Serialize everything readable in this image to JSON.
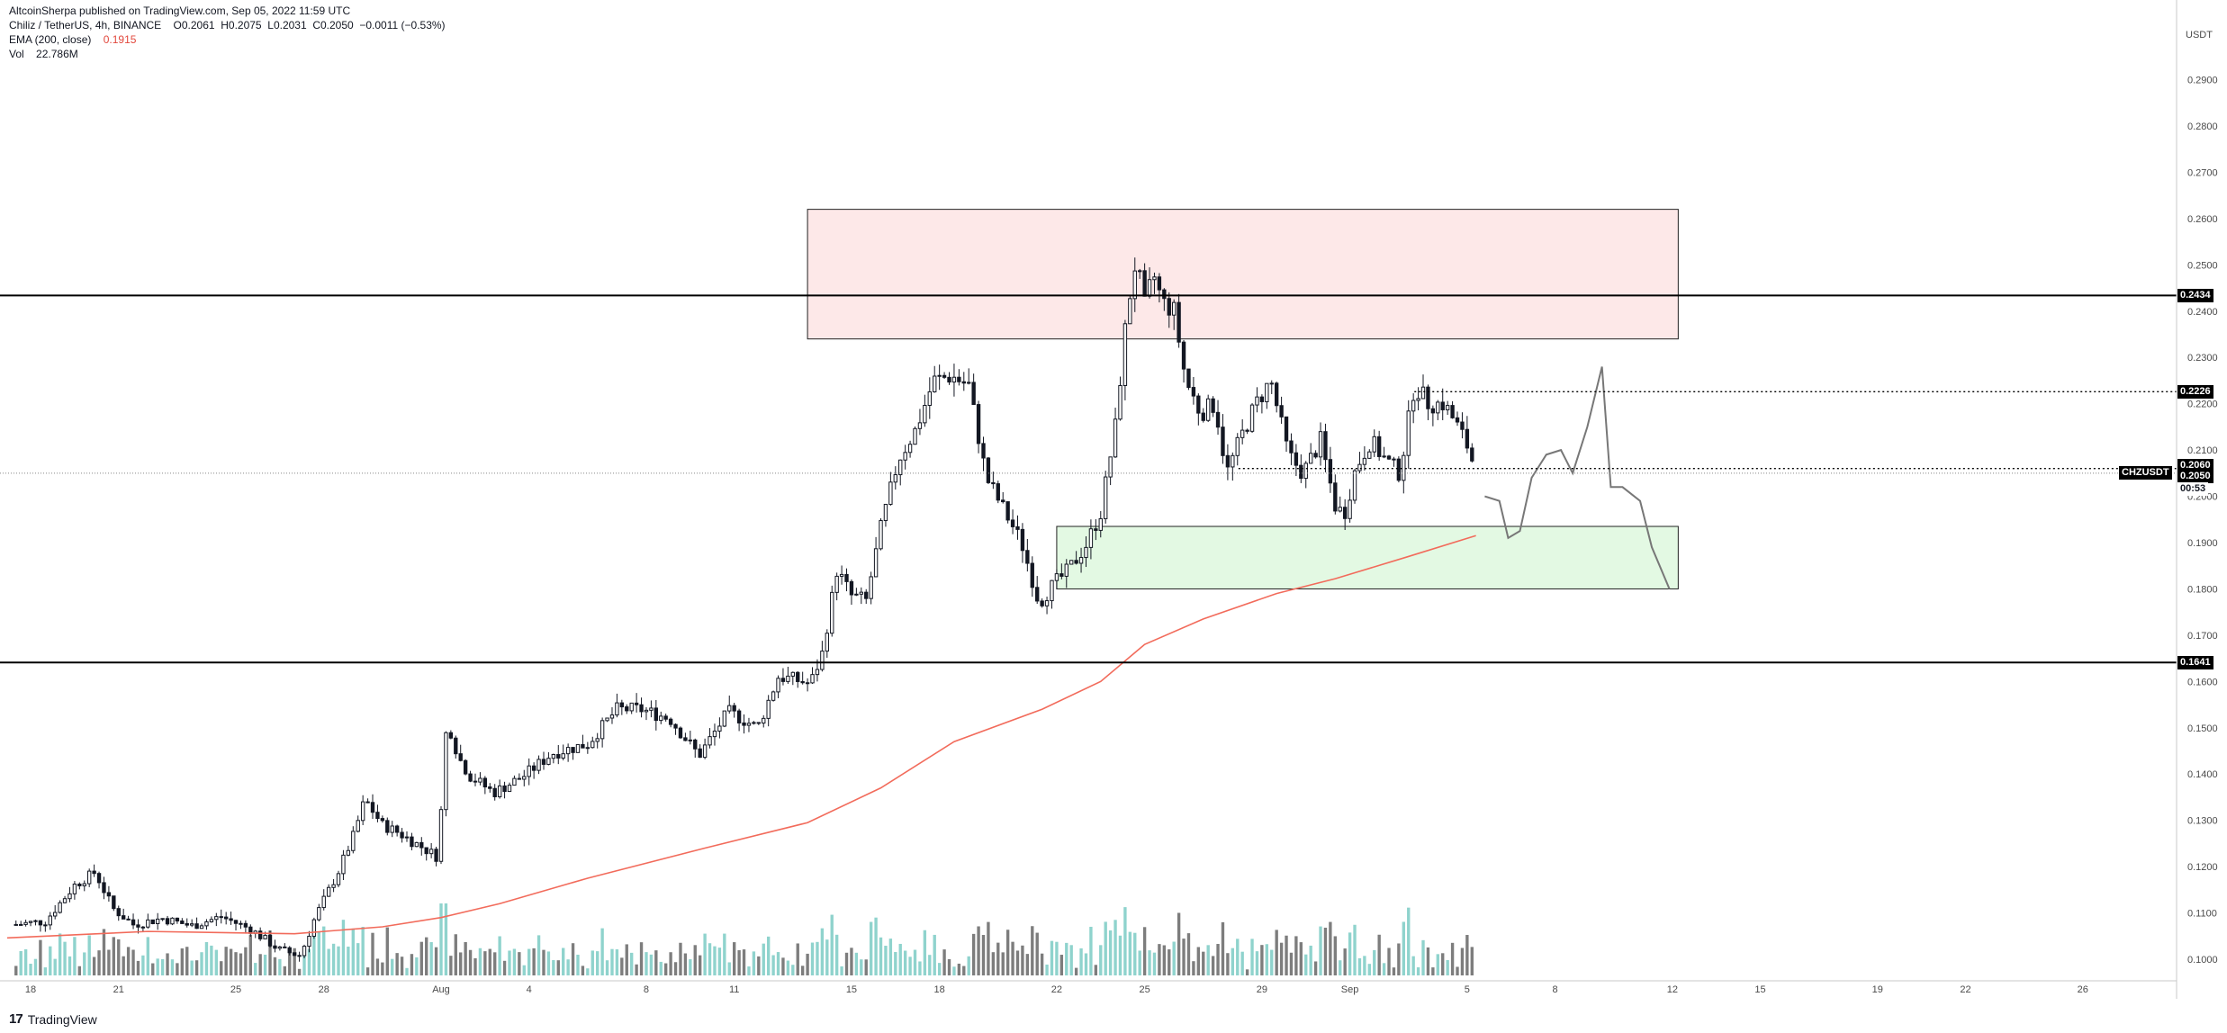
{
  "header": {
    "published": "AltcoinSherpa published on TradingView.com, Sep 05, 2022 11:59 UTC",
    "symbol": "Chiliz / TetherUS, 4h, BINANCE",
    "ohlc": "O0.2061  H0.2075  L0.2031  C0.2050  −0.0011 (−0.53%)",
    "ema_label": "EMA (200, close)",
    "ema_value": "0.1915",
    "vol_label": "Vol",
    "vol_value": "22.786M"
  },
  "branding": {
    "logo": "17",
    "name": "TradingView"
  },
  "colors": {
    "up_candle": "#ffffff",
    "down_candle": "#131722",
    "wick": "#131722",
    "ema": "#f26b5b",
    "vol_up": "#8fd3cd",
    "vol_down": "#7d7d7d",
    "resistance_zone": "#fde8e8",
    "support_zone": "#e3f9e3",
    "axis_text": "#4a4a4a"
  },
  "chart_data": {
    "type": "candlestick",
    "title": "Chiliz / TetherUS, 4h, BINANCE",
    "ylabel": "USDT",
    "ylim": [
      0.0965,
      0.3045
    ],
    "y_ticks": [
      "0.2900",
      "0.2800",
      "0.2700",
      "0.2600",
      "0.2500",
      "0.2400",
      "0.2300",
      "0.2200",
      "0.2100",
      "0.2000",
      "0.1900",
      "0.1800",
      "0.1700",
      "0.1600",
      "0.1500",
      "0.1400",
      "0.1300",
      "0.1200",
      "0.1100",
      "0.1000"
    ],
    "x_ticks": [
      {
        "label": "18",
        "day": -14
      },
      {
        "label": "21",
        "day": -11
      },
      {
        "label": "25",
        "day": -7
      },
      {
        "label": "28",
        "day": -4
      },
      {
        "label": "Aug",
        "day": 0
      },
      {
        "label": "4",
        "day": 3
      },
      {
        "label": "8",
        "day": 7
      },
      {
        "label": "11",
        "day": 10
      },
      {
        "label": "15",
        "day": 14
      },
      {
        "label": "18",
        "day": 17
      },
      {
        "label": "22",
        "day": 21
      },
      {
        "label": "25",
        "day": 24
      },
      {
        "label": "29",
        "day": 28
      },
      {
        "label": "Sep",
        "day": 31
      },
      {
        "label": "5",
        "day": 35
      },
      {
        "label": "8",
        "day": 38
      },
      {
        "label": "12",
        "day": 42
      },
      {
        "label": "15",
        "day": 45
      },
      {
        "label": "19",
        "day": 49
      },
      {
        "label": "22",
        "day": 52
      },
      {
        "label": "26",
        "day": 56
      }
    ],
    "x_range_days": [
      -14.8,
      59.2
    ],
    "close_path": [
      [
        -14.5,
        0.1075
      ],
      [
        -13.5,
        0.1082
      ],
      [
        -12.5,
        0.116
      ],
      [
        -11.8,
        0.1188
      ],
      [
        -11.2,
        0.111
      ],
      [
        -10.5,
        0.1075
      ],
      [
        -9.5,
        0.1088
      ],
      [
        -8.5,
        0.1072
      ],
      [
        -7.5,
        0.1092
      ],
      [
        -6.5,
        0.1065
      ],
      [
        -5.5,
        0.102
      ],
      [
        -4.8,
        0.1008
      ],
      [
        -4.3,
        0.109
      ],
      [
        -3.5,
        0.119
      ],
      [
        -3.0,
        0.1265
      ],
      [
        -2.6,
        0.1345
      ],
      [
        -2.0,
        0.129
      ],
      [
        -1.5,
        0.1275
      ],
      [
        -0.6,
        0.124
      ],
      [
        -0.1,
        0.122
      ],
      [
        0.2,
        0.152
      ],
      [
        0.6,
        0.1435
      ],
      [
        1.0,
        0.1395
      ],
      [
        1.8,
        0.136
      ],
      [
        2.8,
        0.1395
      ],
      [
        3.8,
        0.1445
      ],
      [
        5.0,
        0.1465
      ],
      [
        6.0,
        0.154
      ],
      [
        6.8,
        0.154
      ],
      [
        7.8,
        0.152
      ],
      [
        8.8,
        0.144
      ],
      [
        9.8,
        0.1535
      ],
      [
        10.8,
        0.15
      ],
      [
        11.5,
        0.161
      ],
      [
        12.0,
        0.1605
      ],
      [
        12.6,
        0.1595
      ],
      [
        13.0,
        0.166
      ],
      [
        13.5,
        0.184
      ],
      [
        14.0,
        0.1785
      ],
      [
        14.5,
        0.1775
      ],
      [
        15.0,
        0.193
      ],
      [
        15.6,
        0.208
      ],
      [
        16.2,
        0.2145
      ],
      [
        16.8,
        0.225
      ],
      [
        17.4,
        0.226
      ],
      [
        18.0,
        0.224
      ],
      [
        18.6,
        0.204
      ],
      [
        19.2,
        0.197
      ],
      [
        19.8,
        0.19
      ],
      [
        20.4,
        0.177
      ],
      [
        20.9,
        0.181
      ],
      [
        21.4,
        0.184
      ],
      [
        22.0,
        0.1895
      ],
      [
        22.5,
        0.1965
      ],
      [
        23.0,
        0.215
      ],
      [
        23.4,
        0.24
      ],
      [
        23.7,
        0.251
      ],
      [
        24.0,
        0.241
      ],
      [
        24.3,
        0.248
      ],
      [
        24.6,
        0.242
      ],
      [
        25.0,
        0.24
      ],
      [
        25.4,
        0.225
      ],
      [
        25.9,
        0.218
      ],
      [
        26.4,
        0.22
      ],
      [
        26.8,
        0.205
      ],
      [
        27.3,
        0.213
      ],
      [
        27.8,
        0.22
      ],
      [
        28.3,
        0.225
      ],
      [
        28.9,
        0.209
      ],
      [
        29.4,
        0.205
      ],
      [
        30.0,
        0.212
      ],
      [
        30.5,
        0.198
      ],
      [
        30.8,
        0.196
      ],
      [
        31.2,
        0.206
      ],
      [
        31.7,
        0.212
      ],
      [
        32.2,
        0.208
      ],
      [
        32.7,
        0.205
      ],
      [
        33.2,
        0.224
      ],
      [
        33.7,
        0.22
      ],
      [
        34.2,
        0.22
      ],
      [
        34.6,
        0.216
      ],
      [
        35.0,
        0.211
      ],
      [
        35.3,
        0.2055
      ]
    ],
    "ema200_path": [
      [
        -14.8,
        0.1046
      ],
      [
        -10.0,
        0.106
      ],
      [
        -5.0,
        0.1055
      ],
      [
        -2.0,
        0.107
      ],
      [
        0.0,
        0.109
      ],
      [
        2.0,
        0.112
      ],
      [
        5.0,
        0.1175
      ],
      [
        9.0,
        0.124
      ],
      [
        12.5,
        0.1295
      ],
      [
        15.0,
        0.137
      ],
      [
        17.5,
        0.147
      ],
      [
        20.5,
        0.154
      ],
      [
        22.5,
        0.16
      ],
      [
        24.0,
        0.168
      ],
      [
        26.0,
        0.1735
      ],
      [
        28.5,
        0.179
      ],
      [
        30.5,
        0.1822
      ],
      [
        33.0,
        0.187
      ],
      [
        35.3,
        0.1915
      ]
    ],
    "projection_path": [
      [
        35.6,
        0.2
      ],
      [
        36.1,
        0.199
      ],
      [
        36.4,
        0.191
      ],
      [
        36.8,
        0.1925
      ],
      [
        37.2,
        0.204
      ],
      [
        37.7,
        0.209
      ],
      [
        38.2,
        0.21
      ],
      [
        38.6,
        0.205
      ],
      [
        39.1,
        0.215
      ],
      [
        39.6,
        0.228
      ],
      [
        39.9,
        0.202
      ],
      [
        40.3,
        0.202
      ],
      [
        40.9,
        0.199
      ],
      [
        41.3,
        0.189
      ],
      [
        41.9,
        0.18
      ]
    ],
    "horizontal_levels": [
      {
        "price": 0.2434,
        "label": "0.2434",
        "style": "solid"
      },
      {
        "price": 0.1641,
        "label": "0.1641",
        "style": "solid"
      },
      {
        "price": 0.2226,
        "label": "0.2226",
        "style": "dotted",
        "start_day": 33.2
      },
      {
        "price": 0.206,
        "label": "0.2060",
        "style": "dotted",
        "start_day": 27.2
      }
    ],
    "zones": [
      {
        "kind": "resistance",
        "start_day": 12.5,
        "end_day": 42.2,
        "top": 0.262,
        "bottom": 0.234
      },
      {
        "kind": "support",
        "start_day": 21.0,
        "end_day": 42.2,
        "top": 0.1935,
        "bottom": 0.18
      }
    ],
    "current_price": {
      "value": "0.2050",
      "symbol": "CHZUSDT",
      "countdown": "00:53"
    },
    "legend": {
      "symbol": "CHZUSDT"
    }
  }
}
